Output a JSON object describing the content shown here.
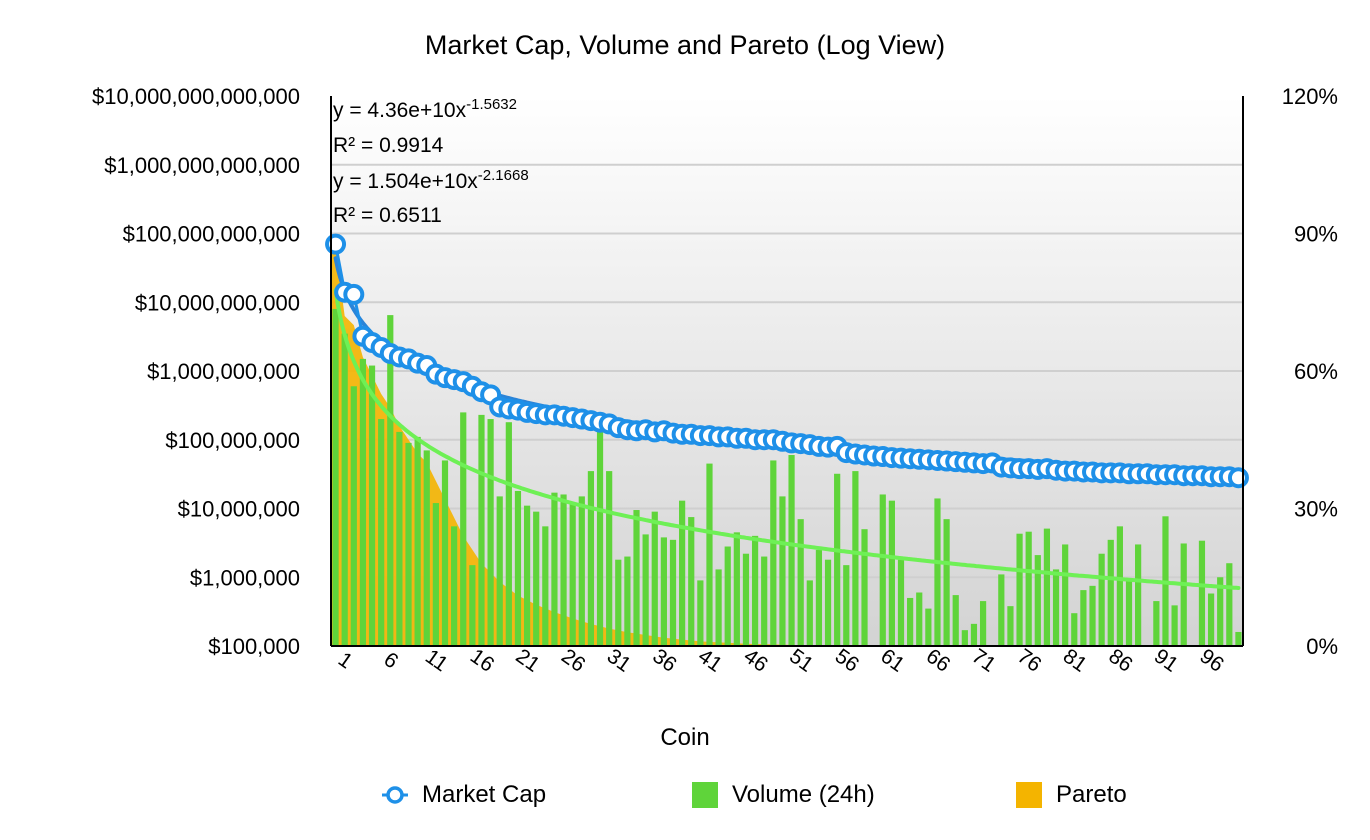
{
  "chart_data": {
    "type": "bar",
    "title": "Market Cap, Volume and Pareto (Log View)",
    "xlabel": "Coin",
    "ylabel": "",
    "y_scale": "log",
    "ylim": [
      100000,
      10000000000000
    ],
    "y_ticks": [
      "$100,000",
      "$1,000,000",
      "$10,000,000",
      "$100,000,000",
      "$1,000,000,000",
      "$10,000,000,000",
      "$100,000,000,000",
      "$1,000,000,000,000",
      "$10,000,000,000,000"
    ],
    "y2lim": [
      0,
      120
    ],
    "y2_ticks": [
      "0%",
      "30%",
      "60%",
      "90%",
      "120%"
    ],
    "x_ticks": [
      "1",
      "6",
      "11",
      "16",
      "21",
      "26",
      "31",
      "36",
      "41",
      "46",
      "51",
      "56",
      "61",
      "66",
      "71",
      "76",
      "81",
      "86",
      "91",
      "96"
    ],
    "x": [
      1,
      2,
      3,
      4,
      5,
      6,
      7,
      8,
      9,
      10,
      11,
      12,
      13,
      14,
      15,
      16,
      17,
      18,
      19,
      20,
      21,
      22,
      23,
      24,
      25,
      26,
      27,
      28,
      29,
      30,
      31,
      32,
      33,
      34,
      35,
      36,
      37,
      38,
      39,
      40,
      41,
      42,
      43,
      44,
      45,
      46,
      47,
      48,
      49,
      50,
      51,
      52,
      53,
      54,
      55,
      56,
      57,
      58,
      59,
      60,
      61,
      62,
      63,
      64,
      65,
      66,
      67,
      68,
      69,
      70,
      71,
      72,
      73,
      74,
      75,
      76,
      77,
      78,
      79,
      80,
      81,
      82,
      83,
      84,
      85,
      86,
      87,
      88,
      89,
      90,
      91,
      92,
      93,
      94,
      95,
      96,
      97,
      98,
      99,
      100
    ],
    "series": [
      {
        "name": "Market Cap",
        "type": "line",
        "color": "#1e90e8",
        "values": [
          70000000000,
          14000000000,
          13000000000,
          3200000000,
          2600000000,
          2200000000,
          1800000000,
          1600000000,
          1500000000,
          1300000000,
          1200000000,
          900000000,
          800000000,
          750000000,
          700000000,
          600000000,
          500000000,
          450000000,
          300000000,
          280000000,
          270000000,
          250000000,
          240000000,
          230000000,
          230000000,
          220000000,
          210000000,
          200000000,
          190000000,
          180000000,
          170000000,
          150000000,
          140000000,
          135000000,
          140000000,
          130000000,
          135000000,
          125000000,
          120000000,
          120000000,
          115000000,
          115000000,
          110000000,
          110000000,
          105000000,
          105000000,
          100000000,
          100000000,
          100000000,
          95000000,
          90000000,
          88000000,
          85000000,
          80000000,
          78000000,
          80000000,
          65000000,
          62000000,
          60000000,
          58000000,
          57000000,
          55000000,
          54000000,
          53000000,
          52000000,
          51000000,
          50000000,
          49000000,
          48000000,
          47000000,
          46000000,
          45000000,
          46000000,
          40000000,
          39000000,
          38000000,
          38000000,
          37000000,
          38000000,
          36000000,
          35000000,
          35000000,
          34000000,
          34000000,
          33000000,
          33000000,
          33000000,
          32000000,
          32000000,
          32000000,
          31000000,
          31000000,
          31000000,
          30000000,
          30000000,
          30000000,
          29000000,
          29000000,
          29000000,
          28000000
        ]
      },
      {
        "name": "Volume (24h)",
        "type": "bar",
        "color": "#5fd43a",
        "values": [
          8000000000,
          3500000000,
          600000000,
          1500000000,
          1200000000,
          200000000,
          6500000000,
          130000000,
          90000000,
          110000000,
          70000000,
          12000000,
          50000000,
          5500000,
          250000000,
          1500000,
          230000000,
          200000000,
          15000000,
          180000000,
          18000000,
          11000000,
          9000000,
          5500000,
          17000000,
          16000000,
          12000000,
          15000000,
          35000000,
          140000000,
          35000000,
          1800000,
          2000000,
          9500000,
          4200000,
          9000000,
          3800000,
          3500000,
          13000000,
          7500000,
          900000,
          45000000,
          1300000,
          2800000,
          4500000,
          2200000,
          4000000,
          2000000,
          50000000,
          15000000,
          60000000,
          7000000,
          900000,
          2500000,
          1800000,
          32000000,
          1500000,
          35000000,
          5000000,
          100000,
          16000000,
          13000000,
          1800000,
          500000,
          600000,
          350000,
          14000000,
          7000000,
          550000,
          170000,
          210000,
          450000,
          100000,
          1100000,
          380000,
          4300000,
          4600000,
          2100000,
          5100000,
          1300000,
          3000000,
          300000,
          650000,
          750000,
          2200000,
          3500000,
          5500000,
          900000,
          3000000,
          100000,
          450000,
          7700000,
          390000,
          3100000,
          100000,
          3400000,
          580000,
          1000000,
          1600000,
          160000
        ]
      },
      {
        "name": "Pareto",
        "type": "area",
        "color": "#f4b400",
        "axis": "right",
        "values": [
          87,
          72,
          70,
          63,
          59,
          55,
          52,
          48,
          45,
          42,
          40,
          36,
          32,
          28,
          24,
          21,
          18,
          16,
          14,
          12.5,
          11,
          10,
          9,
          8.2,
          7.4,
          6.7,
          6,
          5.4,
          4.8,
          4.3,
          3.8,
          3.4,
          3,
          2.7,
          2.4,
          2.1,
          1.8,
          1.6,
          1.4,
          1.2,
          1,
          0.9,
          0.8,
          0.7,
          0.6,
          0.5,
          0.45,
          0.4,
          0.35,
          0.3,
          0.25,
          0.2,
          0.17,
          0.14,
          0.12,
          0.1,
          0,
          0,
          0,
          0,
          0,
          0,
          0,
          0,
          0,
          0,
          0,
          0,
          0,
          0,
          0,
          0,
          0,
          0,
          0,
          0,
          0,
          0,
          0,
          0,
          0,
          0,
          0,
          0,
          0,
          0,
          0,
          0,
          0,
          0,
          0,
          0,
          0,
          0,
          0,
          0,
          0,
          0,
          0,
          0
        ]
      }
    ],
    "trendlines": [
      {
        "series": "Market Cap",
        "equation": "y = 4.36e+10x",
        "exponent": "-1.5632",
        "r2": "R² = 0.9914",
        "a": 43600000000,
        "b": -1.5632,
        "color": "#2a84d8"
      },
      {
        "series": "Volume (24h)",
        "equation": "y = 1.504e+10x",
        "exponent": "-2.1668",
        "r2": "R² = 0.6511",
        "a": 15040000000,
        "b": -2.1668,
        "color": "#6ef055"
      }
    ],
    "grid": true,
    "legend_position": "bottom"
  }
}
